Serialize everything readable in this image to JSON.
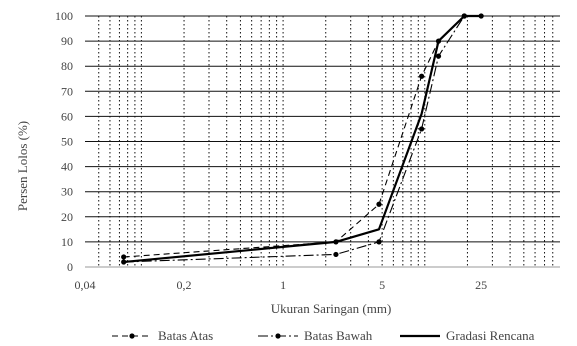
{
  "chart_data": {
    "type": "line",
    "title": "",
    "xlabel": "Ukuran Saringan (mm)",
    "ylabel": "Persen Lolos (%)",
    "x_scale": "log",
    "xlim": [
      0.04,
      90
    ],
    "ylim": [
      0,
      100
    ],
    "x_tick_labels": [
      {
        "value": 0.04,
        "label": "0,04"
      },
      {
        "value": 0.2,
        "label": "0,2"
      },
      {
        "value": 1,
        "label": "1"
      },
      {
        "value": 5,
        "label": "5"
      },
      {
        "value": 25,
        "label": "25"
      }
    ],
    "y_ticks": [
      0,
      10,
      20,
      30,
      40,
      50,
      60,
      70,
      80,
      90,
      100
    ],
    "grid": {
      "horizontal": "solid",
      "vertical": "dotted"
    },
    "legend_position": "bottom",
    "series": [
      {
        "name": "Batas Atas",
        "style": "dashed",
        "markers": true,
        "x": [
          0.075,
          2.36,
          4.75,
          9.5,
          12.5,
          19
        ],
        "y": [
          4,
          10,
          25,
          76,
          90,
          100
        ]
      },
      {
        "name": "Batas Bawah",
        "style": "dash-dot",
        "markers": true,
        "x": [
          0.075,
          2.36,
          4.75,
          9.5,
          12.5,
          19,
          25
        ],
        "y": [
          2,
          5,
          10,
          55,
          84,
          100,
          100
        ]
      },
      {
        "name": "Gradasi Rencana",
        "style": "solid",
        "markers": false,
        "x": [
          0.075,
          2.36,
          4.75,
          9.5,
          12.5,
          19,
          25
        ],
        "y": [
          2,
          10,
          15,
          61,
          90,
          100,
          100
        ]
      }
    ]
  }
}
